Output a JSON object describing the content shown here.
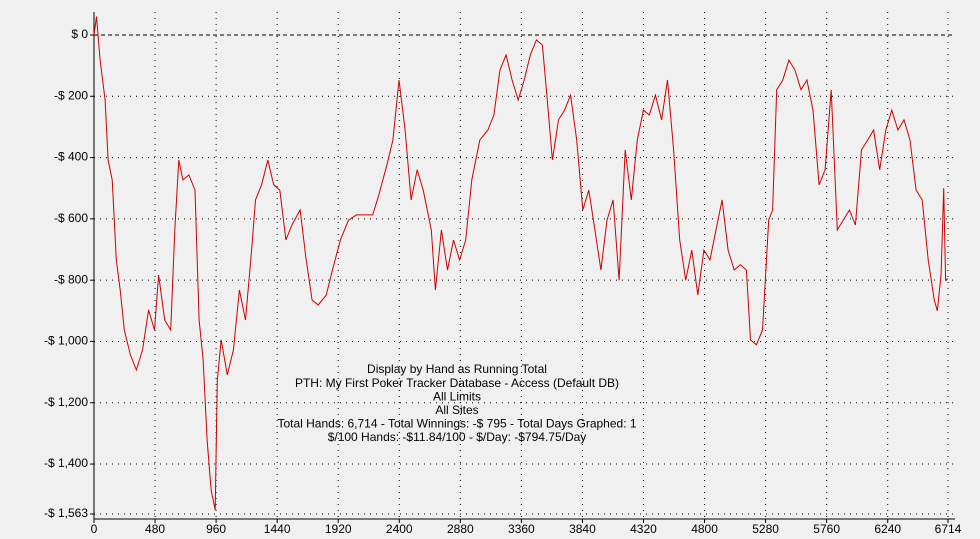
{
  "chart_data": {
    "type": "line",
    "annotations": [
      "Display by Hand as Running Total",
      "PTH: My First Poker Tracker Database - Access (Default DB)",
      "All Limits",
      "All Sites",
      "Total Hands: 6,714 - Total Winnings: -$ 795 - Total Days Graphed: 1",
      "$/100 Hands: -$11.84/100 - $/Day: -$794.75/Day"
    ],
    "xlim": [
      0,
      6714
    ],
    "ylim": [
      -1563,
      75
    ],
    "xticks": [
      0,
      480,
      960,
      1440,
      1920,
      2400,
      2880,
      3360,
      3840,
      4320,
      4800,
      5280,
      5760,
      6240,
      6714
    ],
    "yticks": [
      {
        "value": 0,
        "label": "$ 0"
      },
      {
        "value": -200,
        "label": "-$ 200"
      },
      {
        "value": -400,
        "label": "-$ 400"
      },
      {
        "value": -600,
        "label": "-$ 600"
      },
      {
        "value": -800,
        "label": "-$ 800"
      },
      {
        "value": -1000,
        "label": "-$ 1,000"
      },
      {
        "value": -1200,
        "label": "-$ 1,200"
      },
      {
        "value": -1400,
        "label": "-$ 1,400"
      },
      {
        "value": -1563,
        "label": "-$ 1,563"
      }
    ],
    "grid": true,
    "series": [
      {
        "color": "#cc0000",
        "x": [
          0,
          20,
          48,
          87,
          111,
          143,
          175,
          206,
          238,
          286,
          333,
          381,
          429,
          476,
          508,
          556,
          603,
          635,
          667,
          699,
          746,
          794,
          826,
          858,
          889,
          921,
          953,
          969,
          1000,
          1048,
          1096,
          1143,
          1191,
          1239,
          1270,
          1318,
          1366,
          1413,
          1461,
          1509,
          1556,
          1620,
          1668,
          1715,
          1763,
          1826,
          1874,
          1937,
          2001,
          2064,
          2128,
          2191,
          2239,
          2303,
          2350,
          2398,
          2446,
          2493,
          2541,
          2588,
          2652,
          2684,
          2731,
          2779,
          2826,
          2874,
          2922,
          2970,
          3033,
          3097,
          3144,
          3192,
          3240,
          3287,
          3335,
          3382,
          3430,
          3478,
          3525,
          3557,
          3604,
          3652,
          3700,
          3747,
          3795,
          3843,
          3890,
          3938,
          3985,
          4033,
          4081,
          4128,
          4176,
          4224,
          4271,
          4319,
          4366,
          4414,
          4462,
          4509,
          4557,
          4605,
          4652,
          4700,
          4747,
          4795,
          4843,
          4890,
          4938,
          4985,
          5033,
          5081,
          5129,
          5161,
          5208,
          5256,
          5304,
          5335,
          5367,
          5415,
          5463,
          5510,
          5558,
          5605,
          5653,
          5701,
          5748,
          5796,
          5844,
          5891,
          5939,
          5986,
          6034,
          6082,
          6129,
          6177,
          6225,
          6272,
          6320,
          6368,
          6415,
          6463,
          6511,
          6558,
          6606,
          6630,
          6660,
          6680,
          6695,
          6714
        ],
        "values": [
          0,
          60,
          -82,
          -212,
          -408,
          -473,
          -734,
          -832,
          -963,
          -1044,
          -1093,
          -1028,
          -897,
          -963,
          -783,
          -930,
          -963,
          -636,
          -408,
          -473,
          -457,
          -506,
          -930,
          -1060,
          -1321,
          -1485,
          -1550,
          -1126,
          -995,
          -1109,
          -1028,
          -832,
          -930,
          -702,
          -538,
          -489,
          -408,
          -489,
          -506,
          -669,
          -620,
          -571,
          -734,
          -865,
          -881,
          -848,
          -767,
          -669,
          -604,
          -587,
          -587,
          -587,
          -522,
          -424,
          -343,
          -147,
          -310,
          -538,
          -440,
          -506,
          -636,
          -832,
          -636,
          -767,
          -669,
          -734,
          -669,
          -473,
          -343,
          -310,
          -261,
          -114,
          -65,
          -147,
          -212,
          -147,
          -65,
          -16,
          -33,
          -179,
          -408,
          -277,
          -245,
          -196,
          -343,
          -571,
          -506,
          -636,
          -767,
          -604,
          -538,
          -800,
          -375,
          -538,
          -343,
          -245,
          -261,
          -196,
          -277,
          -147,
          -375,
          -669,
          -800,
          -702,
          -848,
          -702,
          -734,
          -636,
          -538,
          -702,
          -767,
          -750,
          -767,
          -995,
          -1011,
          -963,
          -604,
          -571,
          -179,
          -147,
          -82,
          -114,
          -179,
          -147,
          -245,
          -489,
          -440,
          -179,
          -636,
          -604,
          -571,
          -620,
          -375,
          -343,
          -310,
          -440,
          -310,
          -245,
          -310,
          -277,
          -343,
          -506,
          -538,
          -734,
          -865,
          -900,
          -780,
          -500,
          -800,
          -795
        ]
      }
    ]
  }
}
